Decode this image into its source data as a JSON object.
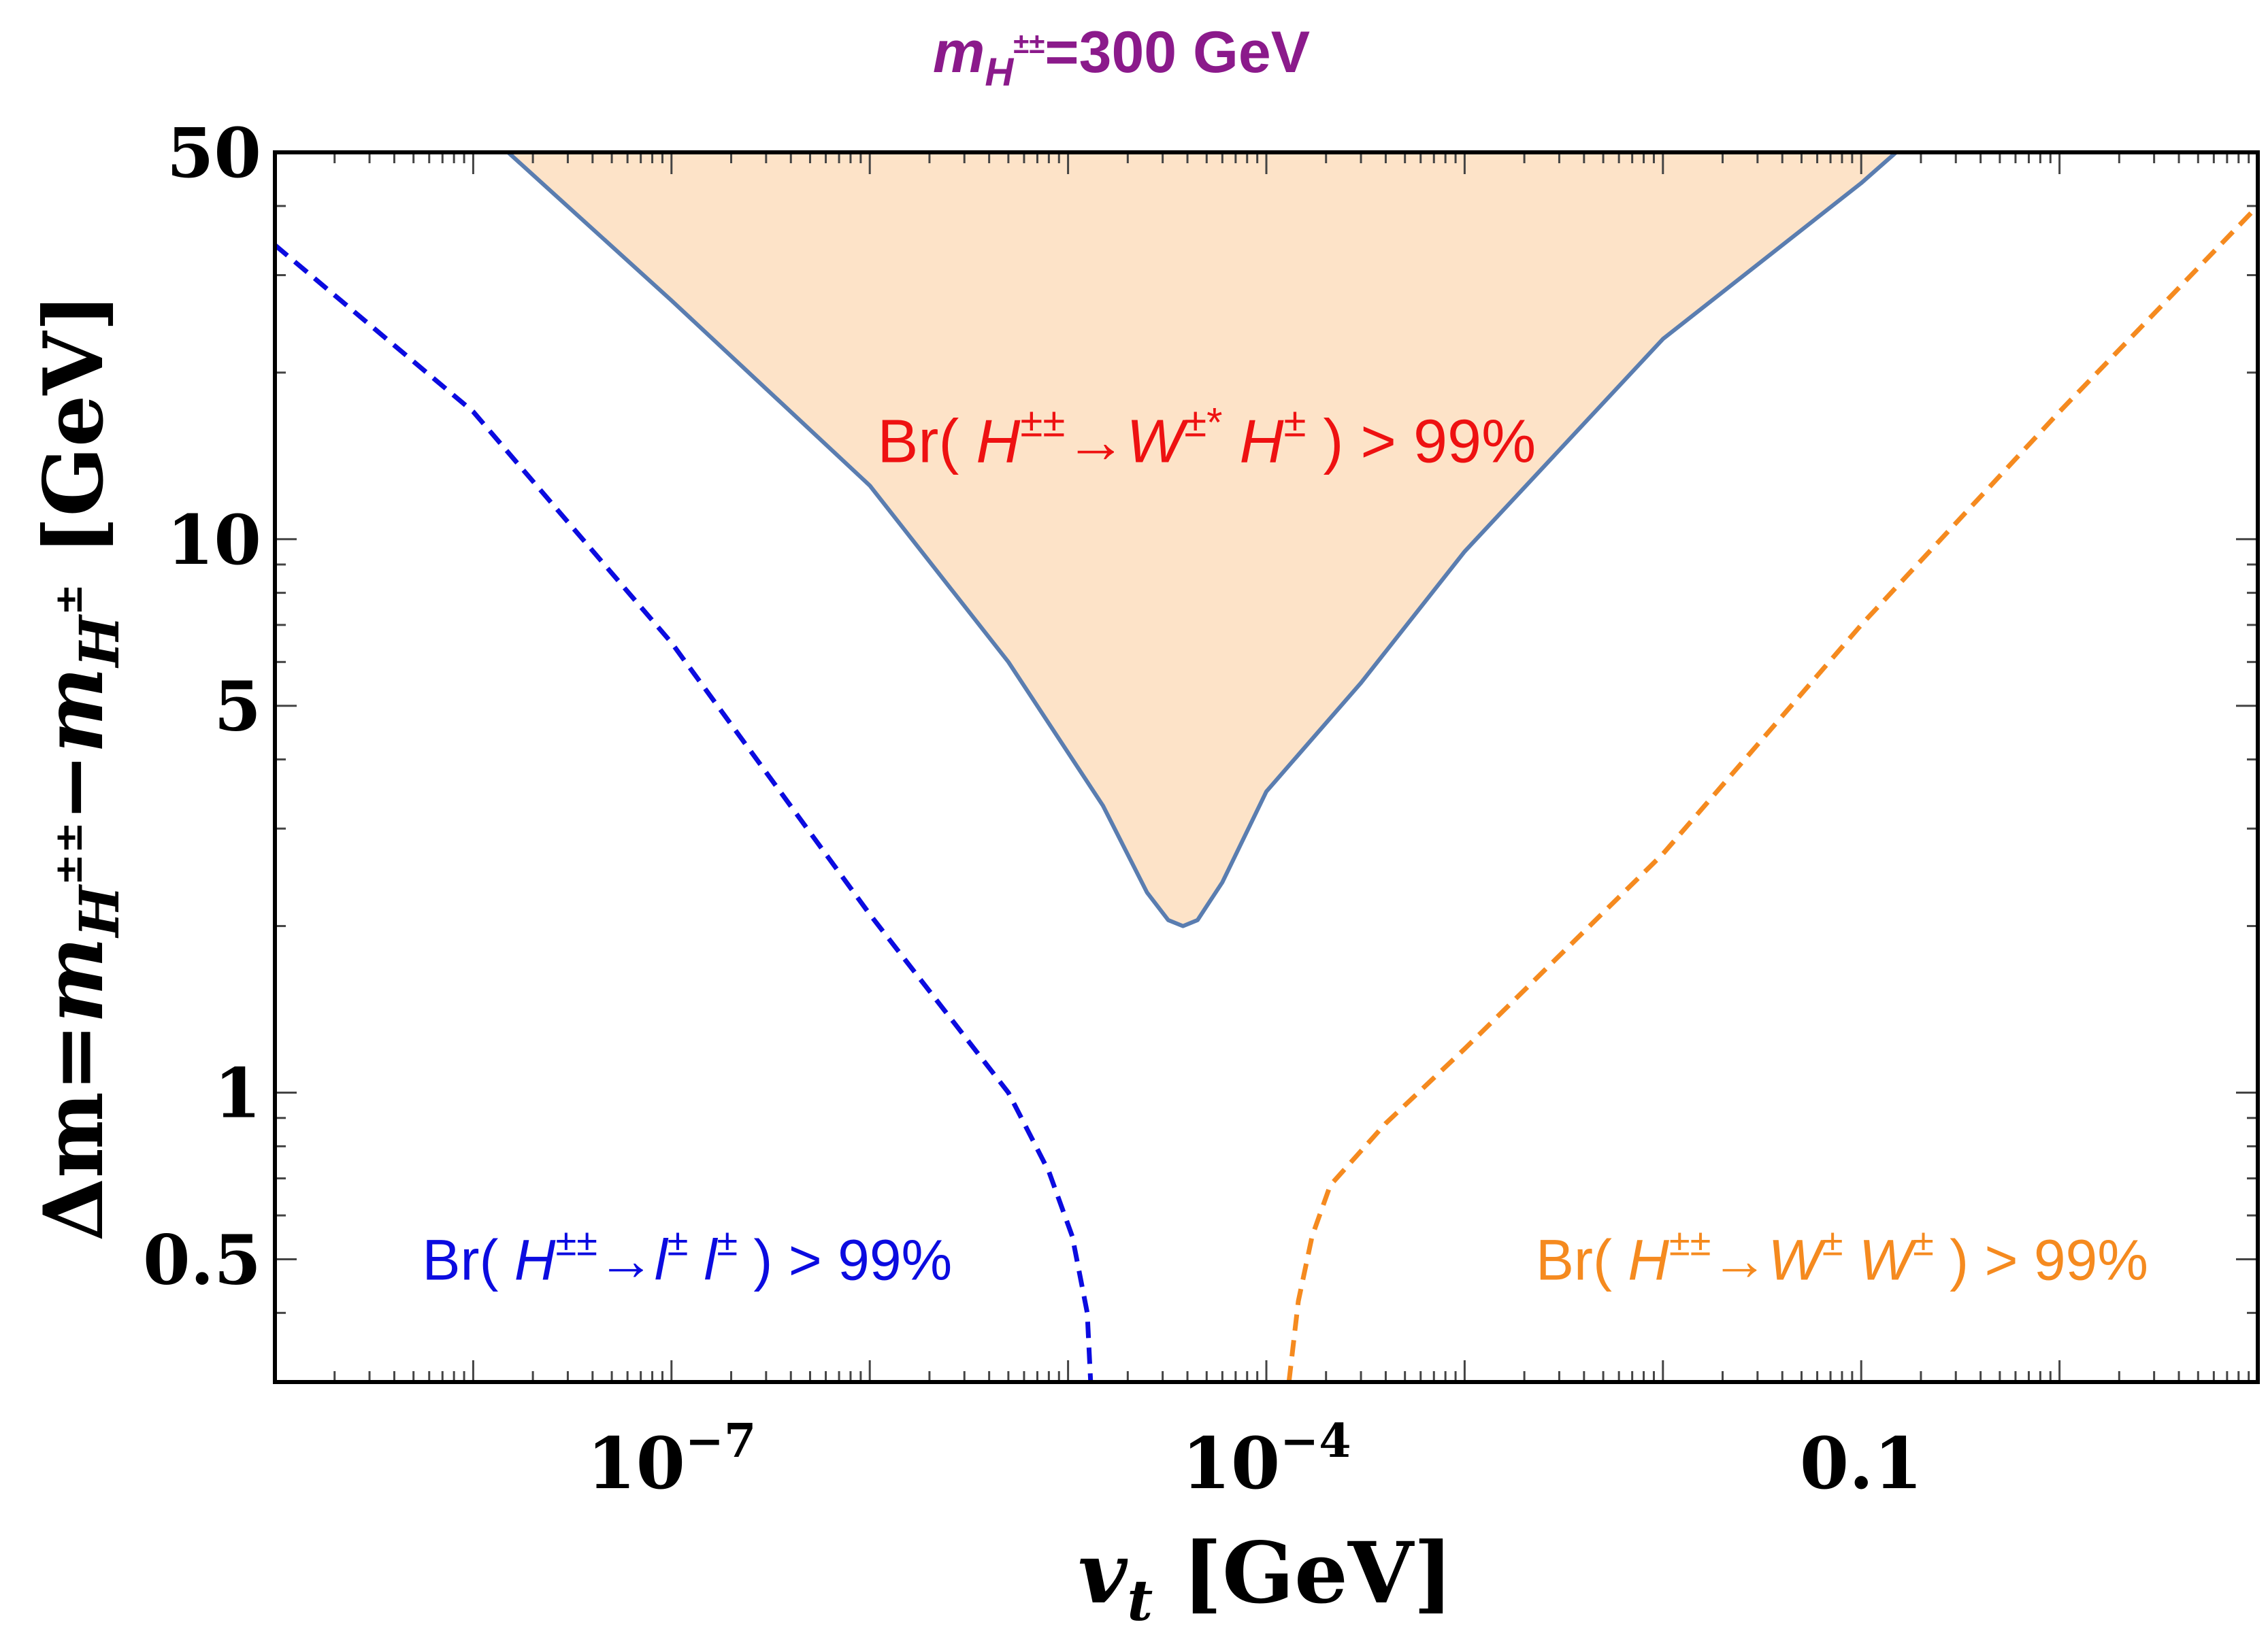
{
  "chart_data": {
    "type": "line",
    "title": {
      "base": "m",
      "sub": "H",
      "sup": "±±",
      "rest": "=300 GeV",
      "color": "#8B1A8B"
    },
    "xlabel": {
      "var": "v",
      "sub": "t",
      "unit": " [GeV]"
    },
    "ylabel": {
      "prefix": "Δm=",
      "m1": "m",
      "sub1": "H",
      "sup1": "±±",
      "minus": "−",
      "m2": "m",
      "sub2": "H",
      "sup2": "±",
      "unit": " [GeV]"
    },
    "x_scale": "log10",
    "y_scale": "log10",
    "xlim": [
      1e-09,
      10
    ],
    "ylim": [
      0.3,
      50
    ],
    "x_ticks": [
      {
        "value": 1e-07,
        "base": "10",
        "exp": "−7"
      },
      {
        "value": 0.0001,
        "base": "10",
        "exp": "−4"
      },
      {
        "value": 0.1,
        "label": "0.1"
      }
    ],
    "y_ticks": [
      {
        "value": 50,
        "label": "50"
      },
      {
        "value": 10,
        "label": "10"
      },
      {
        "value": 5,
        "label": "5"
      },
      {
        "value": 1,
        "label": "1"
      },
      {
        "value": 0.5,
        "label": "0.5"
      }
    ],
    "series": [
      {
        "name": "Br(H±± → W±* H±) > 99% boundary",
        "style": "solid",
        "color": "#5A7DB0",
        "fill": "#FDE3C8",
        "x": [
          1.5e-08,
          1e-07,
          1e-06,
          5e-06,
          1.5e-05,
          2.5e-05,
          3.2e-05,
          3.8e-05,
          4.5e-05,
          6e-05,
          0.0001,
          0.0003,
          0.001,
          0.01,
          0.1,
          0.15
        ],
        "y": [
          50,
          27,
          12.5,
          6,
          3.3,
          2.3,
          2.05,
          2.0,
          2.05,
          2.4,
          3.5,
          5.5,
          9.5,
          23,
          44,
          50
        ]
      },
      {
        "name": "Br(H±± → l± l±) > 99% boundary",
        "style": "dashed",
        "color": "#0B0BE0",
        "x": [
          1e-09,
          1e-08,
          1e-07,
          1e-06,
          5e-06,
          8e-06,
          1.05e-05,
          1.25e-05,
          1.3e-05
        ],
        "y": [
          34,
          17,
          6.5,
          2.1,
          1.0,
          0.72,
          0.55,
          0.4,
          0.3
        ]
      },
      {
        "name": "Br(H±± → W± W±) > 99% boundary",
        "style": "dashed",
        "color": "#F58A1F",
        "x": [
          0.00013,
          0.000145,
          0.00017,
          0.00021,
          0.0004,
          0.001,
          0.01,
          0.1,
          1,
          10
        ],
        "y": [
          0.3,
          0.42,
          0.55,
          0.68,
          0.88,
          1.2,
          2.7,
          7.0,
          17,
          40
        ]
      }
    ],
    "annotations": [
      {
        "name": "annotation-wh",
        "color": "#EE1111",
        "anchor": [
          5e-05,
          15
        ],
        "parts": [
          "Br( ",
          "H",
          "±±",
          "→",
          "W",
          "±*",
          " ",
          "H",
          "±",
          " ) > 99%"
        ]
      },
      {
        "name": "annotation-ll",
        "color": "#0B0BE0",
        "anchor": [
          1.2e-07,
          0.5
        ],
        "parts": [
          "Br( ",
          "H",
          "±±",
          "→",
          "l",
          "±",
          " ",
          "l",
          "±",
          " ) > 99%"
        ]
      },
      {
        "name": "annotation-ww",
        "color": "#F58A1F",
        "anchor": [
          0.08,
          0.5
        ],
        "parts": [
          "Br( ",
          "H",
          "±±",
          "→",
          "W",
          "±",
          " ",
          "W",
          "±",
          " ) > 99%"
        ]
      }
    ]
  }
}
